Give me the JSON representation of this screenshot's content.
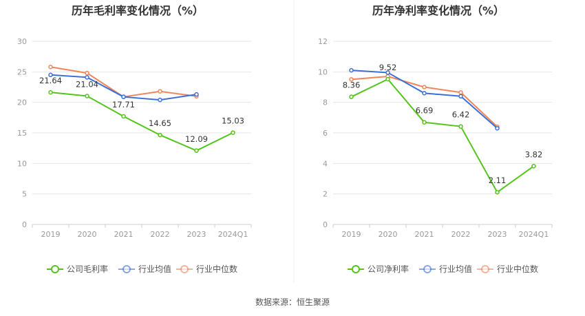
{
  "colors": {
    "company": "#52c41a",
    "industry_avg": "#3b6fd8",
    "industry_median": "#f0845c",
    "grid": "#e6e6e6",
    "axis": "#cccccc"
  },
  "source_text": "数据来源：恒生聚源",
  "chart_data": [
    {
      "type": "line",
      "title": "历年毛利率变化情况（%）",
      "categories": [
        "2019",
        "2020",
        "2021",
        "2022",
        "2023",
        "2024Q1"
      ],
      "ylim": [
        0,
        30
      ],
      "yticks": [
        "0",
        "5",
        "10",
        "15",
        "20",
        "25",
        "30"
      ],
      "grid": true,
      "legend_position": "bottom",
      "series": [
        {
          "name": "公司毛利率",
          "color_key": "company",
          "values": [
            21.64,
            21.04,
            17.71,
            14.65,
            12.09,
            15.03
          ],
          "labels": [
            "21.64",
            "21.04",
            "17.71",
            "14.65",
            "12.09",
            "15.03"
          ]
        },
        {
          "name": "行业均值",
          "color_key": "industry_avg",
          "values": [
            24.5,
            24.1,
            20.9,
            20.4,
            21.3,
            null
          ]
        },
        {
          "name": "行业中位数",
          "color_key": "industry_median",
          "values": [
            25.8,
            24.8,
            20.9,
            21.8,
            21.0,
            null
          ]
        }
      ]
    },
    {
      "type": "line",
      "title": "历年净利率变化情况（%）",
      "categories": [
        "2019",
        "2020",
        "2021",
        "2022",
        "2023",
        "2024Q1"
      ],
      "ylim": [
        0,
        12
      ],
      "yticks": [
        "0",
        "2",
        "4",
        "6",
        "8",
        "10",
        "12"
      ],
      "grid": true,
      "legend_position": "bottom",
      "series": [
        {
          "name": "公司净利率",
          "color_key": "company",
          "values": [
            8.36,
            9.52,
            6.69,
            6.42,
            2.11,
            3.82
          ],
          "labels": [
            "8.36",
            "9.52",
            "6.69",
            "6.42",
            "2.11",
            "3.82"
          ]
        },
        {
          "name": "行业均值",
          "color_key": "industry_avg",
          "values": [
            10.1,
            9.95,
            8.6,
            8.4,
            6.3,
            null
          ]
        },
        {
          "name": "行业中位数",
          "color_key": "industry_median",
          "values": [
            9.5,
            9.7,
            9.0,
            8.65,
            6.4,
            null
          ]
        }
      ]
    }
  ]
}
